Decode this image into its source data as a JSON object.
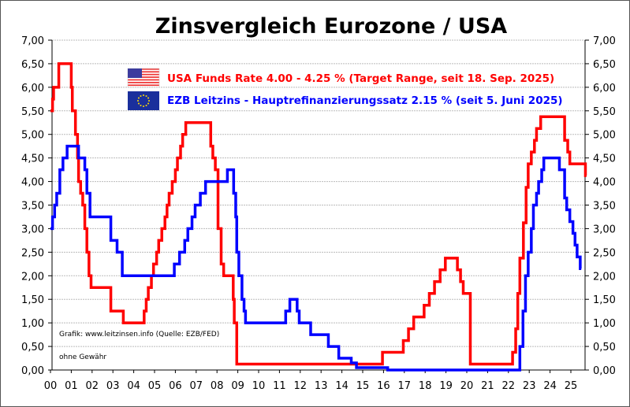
{
  "chart_data": {
    "type": "line",
    "step": true,
    "title": "Zinsvergleich Eurozone / USA",
    "xlabel": "",
    "ylabel": "",
    "xlim": [
      2000,
      2025.9
    ],
    "ylim": [
      0,
      7
    ],
    "grid": true,
    "y_ticks": [
      "0,00",
      "0,50",
      "1,00",
      "1,50",
      "2,00",
      "2,50",
      "3,00",
      "3,50",
      "4,00",
      "4,50",
      "5,00",
      "5,50",
      "6,00",
      "6,50",
      "7,00"
    ],
    "x_ticks": [
      "00",
      "01",
      "02",
      "03",
      "04",
      "05",
      "06",
      "07",
      "08",
      "09",
      "10",
      "11",
      "12",
      "13",
      "14",
      "15",
      "16",
      "17",
      "18",
      "19",
      "20",
      "21",
      "22",
      "23",
      "24",
      "25"
    ],
    "legend_placement": "top-center",
    "series": [
      {
        "name": "USA Funds Rate 4.00 - 4.25 % (Target Range, seit 18. Sep. 2025)",
        "color": "#ff0000",
        "flag": "us-flag",
        "points": [
          [
            2000.0,
            5.5
          ],
          [
            2000.1,
            5.75
          ],
          [
            2000.15,
            6.0
          ],
          [
            2000.4,
            6.5
          ],
          [
            2001.0,
            6.0
          ],
          [
            2001.05,
            5.5
          ],
          [
            2001.2,
            5.0
          ],
          [
            2001.3,
            4.5
          ],
          [
            2001.35,
            4.0
          ],
          [
            2001.45,
            3.75
          ],
          [
            2001.55,
            3.5
          ],
          [
            2001.65,
            3.0
          ],
          [
            2001.75,
            2.5
          ],
          [
            2001.85,
            2.0
          ],
          [
            2001.95,
            1.75
          ],
          [
            2002.9,
            1.25
          ],
          [
            2003.5,
            1.0
          ],
          [
            2004.5,
            1.25
          ],
          [
            2004.6,
            1.5
          ],
          [
            2004.7,
            1.75
          ],
          [
            2004.85,
            2.0
          ],
          [
            2004.95,
            2.25
          ],
          [
            2005.1,
            2.5
          ],
          [
            2005.2,
            2.75
          ],
          [
            2005.35,
            3.0
          ],
          [
            2005.5,
            3.25
          ],
          [
            2005.6,
            3.5
          ],
          [
            2005.7,
            3.75
          ],
          [
            2005.85,
            4.0
          ],
          [
            2006.0,
            4.25
          ],
          [
            2006.1,
            4.5
          ],
          [
            2006.25,
            4.75
          ],
          [
            2006.35,
            5.0
          ],
          [
            2006.5,
            5.25
          ],
          [
            2007.7,
            4.75
          ],
          [
            2007.8,
            4.5
          ],
          [
            2007.92,
            4.25
          ],
          [
            2008.05,
            3.0
          ],
          [
            2008.2,
            2.25
          ],
          [
            2008.32,
            2.0
          ],
          [
            2008.78,
            1.5
          ],
          [
            2008.83,
            1.0
          ],
          [
            2008.95,
            0.125
          ],
          [
            2015.95,
            0.375
          ],
          [
            2016.95,
            0.625
          ],
          [
            2017.2,
            0.875
          ],
          [
            2017.45,
            1.125
          ],
          [
            2017.95,
            1.375
          ],
          [
            2018.2,
            1.625
          ],
          [
            2018.45,
            1.875
          ],
          [
            2018.72,
            2.125
          ],
          [
            2018.97,
            2.375
          ],
          [
            2019.55,
            2.125
          ],
          [
            2019.7,
            1.875
          ],
          [
            2019.83,
            1.625
          ],
          [
            2020.17,
            0.125
          ],
          [
            2022.2,
            0.375
          ],
          [
            2022.35,
            0.875
          ],
          [
            2022.45,
            1.625
          ],
          [
            2022.55,
            2.375
          ],
          [
            2022.72,
            3.125
          ],
          [
            2022.85,
            3.875
          ],
          [
            2022.95,
            4.375
          ],
          [
            2023.1,
            4.625
          ],
          [
            2023.25,
            4.875
          ],
          [
            2023.35,
            5.125
          ],
          [
            2023.55,
            5.375
          ],
          [
            2024.7,
            4.875
          ],
          [
            2024.85,
            4.625
          ],
          [
            2024.95,
            4.375
          ],
          [
            2025.7,
            4.125
          ],
          [
            2025.75,
            4.125
          ]
        ]
      },
      {
        "name": "EZB Leitzins - Hauptrefinanzierungssatz  2.15 % (seit 5. Juni 2025)",
        "color": "#0000ff",
        "flag": "eu-flag",
        "points": [
          [
            2000.0,
            3.0
          ],
          [
            2000.1,
            3.25
          ],
          [
            2000.2,
            3.5
          ],
          [
            2000.3,
            3.75
          ],
          [
            2000.45,
            4.25
          ],
          [
            2000.6,
            4.5
          ],
          [
            2000.8,
            4.75
          ],
          [
            2001.35,
            4.5
          ],
          [
            2001.65,
            4.25
          ],
          [
            2001.75,
            3.75
          ],
          [
            2001.9,
            3.25
          ],
          [
            2002.9,
            2.75
          ],
          [
            2003.2,
            2.5
          ],
          [
            2003.45,
            2.0
          ],
          [
            2005.95,
            2.25
          ],
          [
            2006.2,
            2.5
          ],
          [
            2006.45,
            2.75
          ],
          [
            2006.6,
            3.0
          ],
          [
            2006.8,
            3.25
          ],
          [
            2006.95,
            3.5
          ],
          [
            2007.2,
            3.75
          ],
          [
            2007.45,
            4.0
          ],
          [
            2008.5,
            4.25
          ],
          [
            2008.8,
            3.75
          ],
          [
            2008.9,
            3.25
          ],
          [
            2008.95,
            2.5
          ],
          [
            2009.05,
            2.0
          ],
          [
            2009.2,
            1.5
          ],
          [
            2009.3,
            1.25
          ],
          [
            2009.37,
            1.0
          ],
          [
            2011.3,
            1.25
          ],
          [
            2011.5,
            1.5
          ],
          [
            2011.85,
            1.25
          ],
          [
            2011.95,
            1.0
          ],
          [
            2012.5,
            0.75
          ],
          [
            2013.35,
            0.5
          ],
          [
            2013.85,
            0.25
          ],
          [
            2014.45,
            0.15
          ],
          [
            2014.7,
            0.05
          ],
          [
            2016.2,
            0.0
          ],
          [
            2022.55,
            0.5
          ],
          [
            2022.7,
            1.25
          ],
          [
            2022.82,
            2.0
          ],
          [
            2022.95,
            2.5
          ],
          [
            2023.1,
            3.0
          ],
          [
            2023.2,
            3.5
          ],
          [
            2023.35,
            3.75
          ],
          [
            2023.45,
            4.0
          ],
          [
            2023.6,
            4.25
          ],
          [
            2023.7,
            4.5
          ],
          [
            2024.45,
            4.25
          ],
          [
            2024.7,
            3.65
          ],
          [
            2024.8,
            3.4
          ],
          [
            2024.95,
            3.15
          ],
          [
            2025.1,
            2.9
          ],
          [
            2025.2,
            2.65
          ],
          [
            2025.3,
            2.4
          ],
          [
            2025.45,
            2.15
          ],
          [
            2025.5,
            2.15
          ]
        ]
      }
    ],
    "annotations": [
      "Grafik: www.leitzinsen.info (Quelle: EZB/FED)",
      "ohne Gewähr"
    ]
  }
}
